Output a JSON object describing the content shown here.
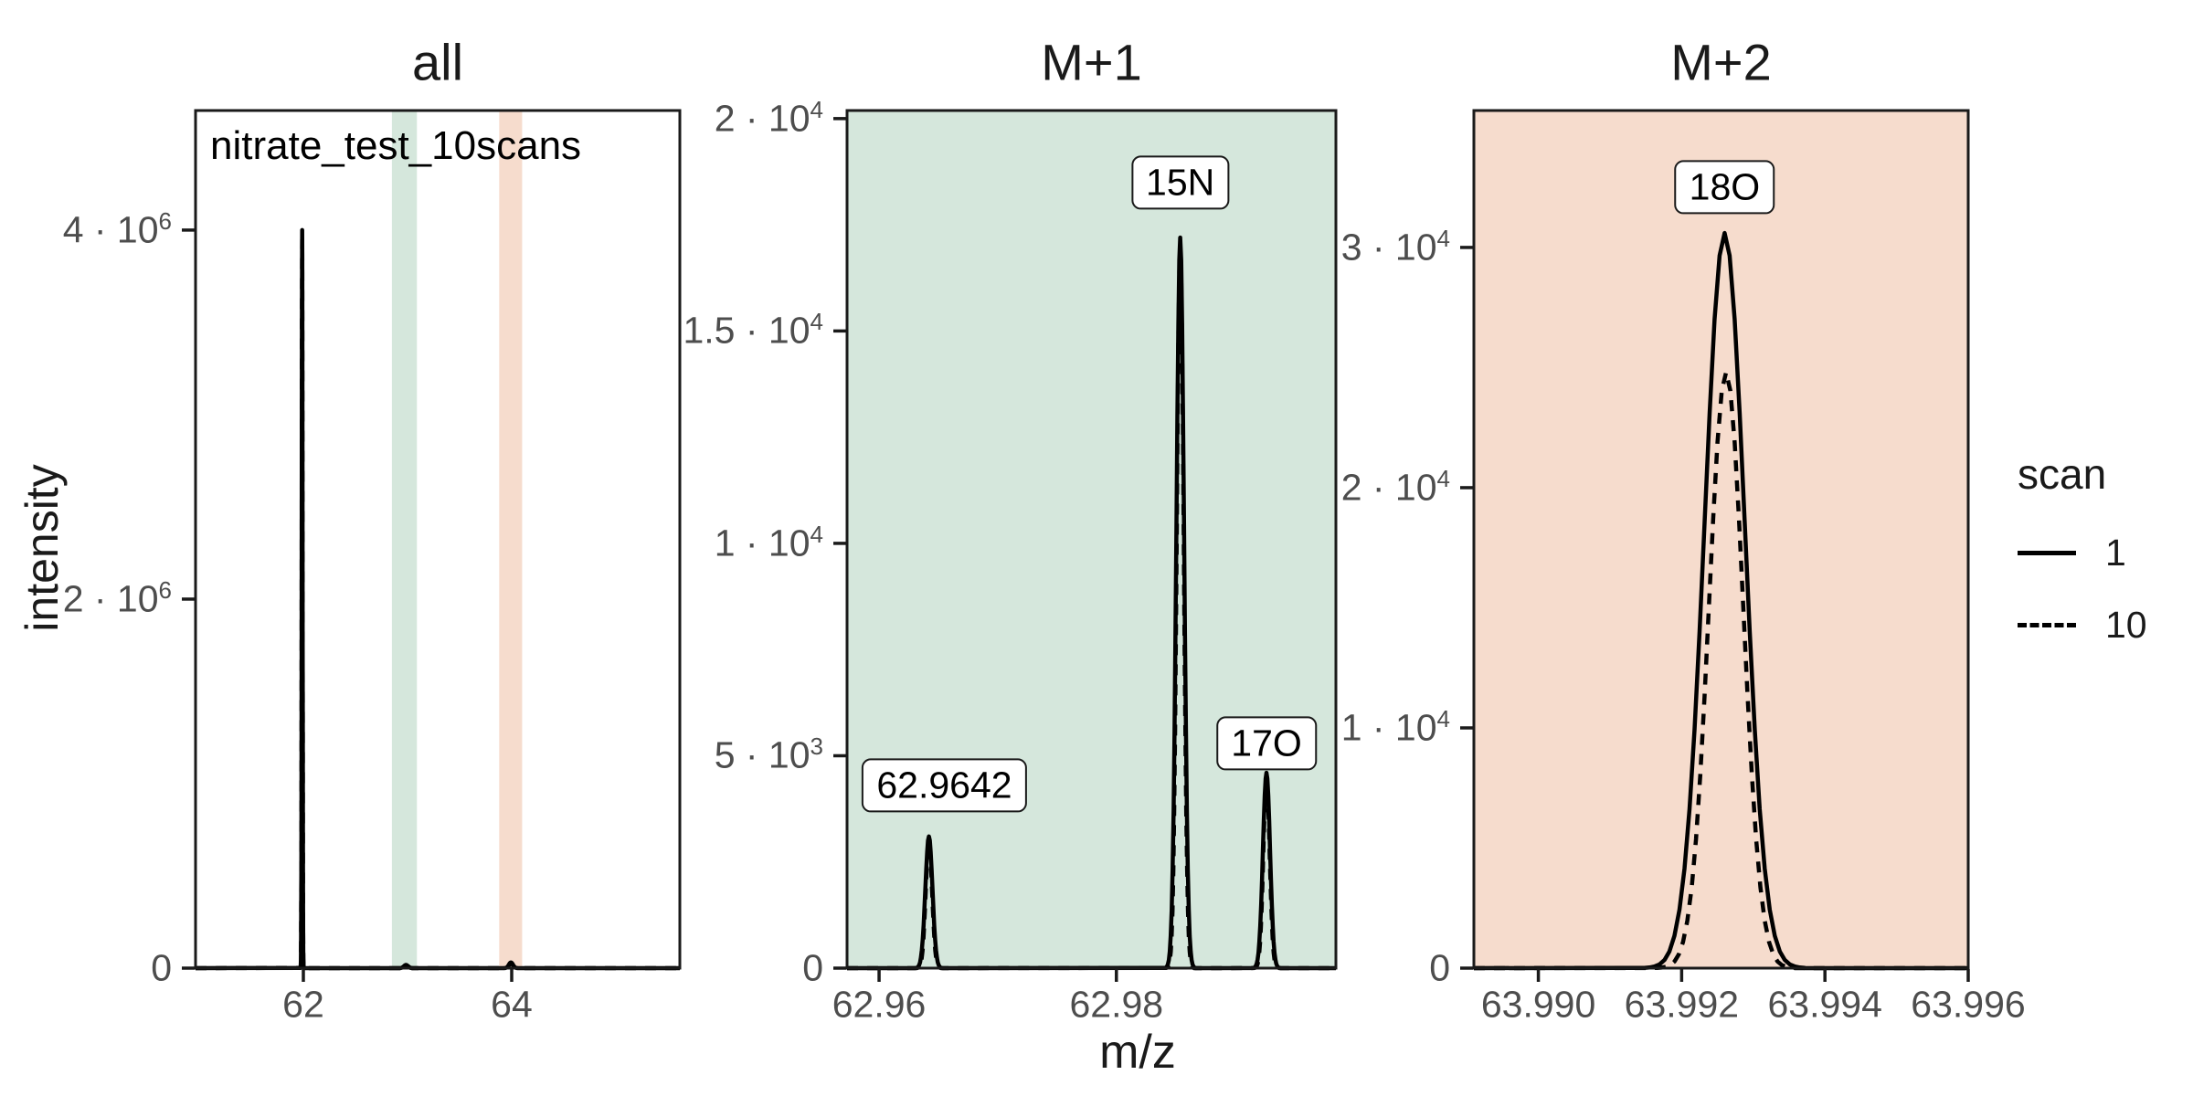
{
  "figure": {
    "y_axis_title": "intensity",
    "x_axis_title": "m/z",
    "annotation": "nitrate_test_10scans"
  },
  "colors": {
    "m1_band_fill": "#d5e7dc",
    "m2_band_fill": "#f6dccd",
    "line": "#000000",
    "panel_border": "#1a1a1a",
    "tick_text": "#4d4d4d",
    "title_text": "#1a1a1a",
    "label_box_bg": "#ffffff",
    "background": "#ffffff"
  },
  "legend": {
    "title": "scan",
    "entries": [
      {
        "label": "1",
        "line_style": "solid"
      },
      {
        "label": "10",
        "line_style": "dashed"
      }
    ]
  },
  "chart_data": {
    "type": "line",
    "subtype": "mass-spectrum-facets",
    "xlabel": "m/z",
    "ylabel": "intensity",
    "legend_position": "right",
    "grid": false,
    "panels": [
      {
        "title": "all",
        "bg": "#ffffff",
        "x_range": [
          60.965,
          65.614
        ],
        "y_range": [
          0,
          4648000
        ],
        "x_ticks": [
          {
            "v": 62,
            "label": "62"
          },
          {
            "v": 64,
            "label": "64"
          }
        ],
        "y_ticks": [
          {
            "v": 0,
            "m": "0",
            "e": ""
          },
          {
            "v": 2000000,
            "m": "2 · 10",
            "e": "6"
          },
          {
            "v": 4000000,
            "m": "4 · 10",
            "e": "6"
          }
        ],
        "bands": [
          {
            "from": 62.85,
            "to": 63.09,
            "color": "#d5e7dc",
            "meaning": "M+1 window"
          },
          {
            "from": 63.88,
            "to": 64.1,
            "color": "#f6dccd",
            "meaning": "M+2 window"
          }
        ],
        "annotation": "nitrate_test_10scans",
        "series": [
          {
            "scan": "1",
            "style": "solid",
            "peaks": [
              {
                "mz": 61.9884,
                "intensity": 4000000,
                "sigma": 0.004
              },
              {
                "mz": 62.9854,
                "intensity": 17200,
                "sigma": 0.02
              },
              {
                "mz": 63.9926,
                "intensity": 30600,
                "sigma": 0.02
              }
            ]
          },
          {
            "scan": "10",
            "style": "dashed",
            "peaks": [
              {
                "mz": 61.9884,
                "intensity": 3950000,
                "sigma": 0.004
              },
              {
                "mz": 62.9854,
                "intensity": 16900,
                "sigma": 0.02
              },
              {
                "mz": 63.9926,
                "intensity": 24800,
                "sigma": 0.02
              }
            ]
          }
        ],
        "peak_labels": []
      },
      {
        "title": "M+1",
        "bg": "#d5e7dc",
        "x_range": [
          62.9573,
          62.9985
        ],
        "y_range": [
          0,
          20190
        ],
        "x_ticks": [
          {
            "v": 62.96,
            "label": "62.96"
          },
          {
            "v": 62.98,
            "label": "62.98"
          }
        ],
        "y_ticks": [
          {
            "v": 0,
            "m": "0",
            "e": ""
          },
          {
            "v": 5000,
            "m": "5 · 10",
            "e": "3"
          },
          {
            "v": 10000,
            "m": "1 · 10",
            "e": "4"
          },
          {
            "v": 15000,
            "m": "1.5 · 10",
            "e": "4"
          },
          {
            "v": 20000,
            "m": "2 · 10",
            "e": "4"
          }
        ],
        "bands": [],
        "annotation": "",
        "series": [
          {
            "scan": "1",
            "style": "solid",
            "peaks": [
              {
                "mz": 62.9642,
                "intensity": 3100,
                "sigma": 0.0003
              },
              {
                "mz": 62.98538,
                "intensity": 17200,
                "sigma": 0.00032
              },
              {
                "mz": 62.99265,
                "intensity": 4600,
                "sigma": 0.0003
              }
            ]
          },
          {
            "scan": "10",
            "style": "dashed",
            "peaks": [
              {
                "mz": 62.9642,
                "intensity": 2950,
                "sigma": 0.00027
              },
              {
                "mz": 62.98538,
                "intensity": 16950,
                "sigma": 0.00029
              },
              {
                "mz": 62.99265,
                "intensity": 4420,
                "sigma": 0.00027
              }
            ]
          }
        ],
        "peak_labels": [
          {
            "text": "62.9642",
            "mz": 62.9655,
            "y": 4300
          },
          {
            "text": "15N",
            "mz": 62.98538,
            "y": 18500
          },
          {
            "text": "17O",
            "mz": 62.99265,
            "y": 5300
          }
        ]
      },
      {
        "title": "M+2",
        "bg": "#f6dccd",
        "x_range": [
          63.9891,
          63.996
        ],
        "y_range": [
          0,
          35700
        ],
        "x_ticks": [
          {
            "v": 63.99,
            "label": "63.990"
          },
          {
            "v": 63.992,
            "label": "63.992"
          },
          {
            "v": 63.994,
            "label": "63.994"
          },
          {
            "v": 63.996,
            "label": "63.996"
          }
        ],
        "y_ticks": [
          {
            "v": 0,
            "m": "0",
            "e": ""
          },
          {
            "v": 10000,
            "m": "1 · 10",
            "e": "4"
          },
          {
            "v": 20000,
            "m": "2 · 10",
            "e": "4"
          },
          {
            "v": 30000,
            "m": "3 · 10",
            "e": "4"
          }
        ],
        "bands": [],
        "annotation": "",
        "series": [
          {
            "scan": "1",
            "style": "solid",
            "peaks": [
              {
                "mz": 63.9926,
                "intensity": 30600,
                "sigma": 0.00028
              }
            ]
          },
          {
            "scan": "10",
            "style": "dashed",
            "peaks": [
              {
                "mz": 63.99262,
                "intensity": 24800,
                "sigma": 0.00024
              }
            ]
          }
        ],
        "peak_labels": [
          {
            "text": "18O",
            "mz": 63.9926,
            "y": 32500
          }
        ]
      }
    ]
  }
}
